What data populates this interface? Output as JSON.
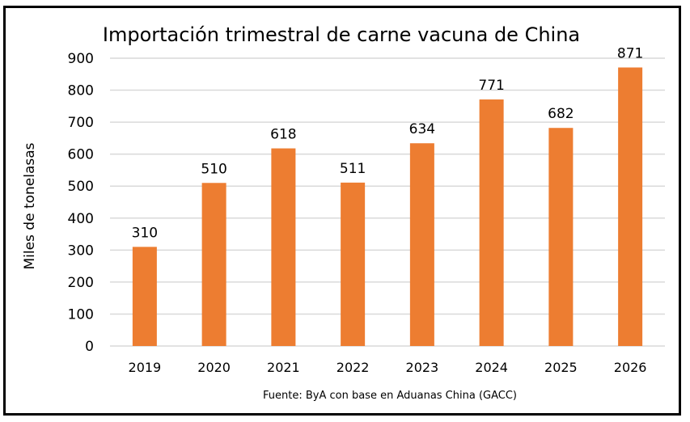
{
  "chart_data": {
    "type": "bar",
    "title": "Importación trimestral de carne vacuna de China",
    "xlabel": "",
    "ylabel": "Miles de tonelasas",
    "categories": [
      "2019",
      "2020",
      "2021",
      "2022",
      "2023",
      "2024",
      "2025",
      "2026"
    ],
    "values": [
      310,
      510,
      618,
      511,
      634,
      771,
      682,
      871
    ],
    "ylim": [
      0,
      900
    ],
    "yticks": [
      0,
      100,
      200,
      300,
      400,
      500,
      600,
      700,
      800,
      900
    ],
    "grid": true,
    "data_labels": true,
    "bar_color": "#ED7D31",
    "source": "Fuente: ByA con base en Aduanas China (GACC)"
  }
}
